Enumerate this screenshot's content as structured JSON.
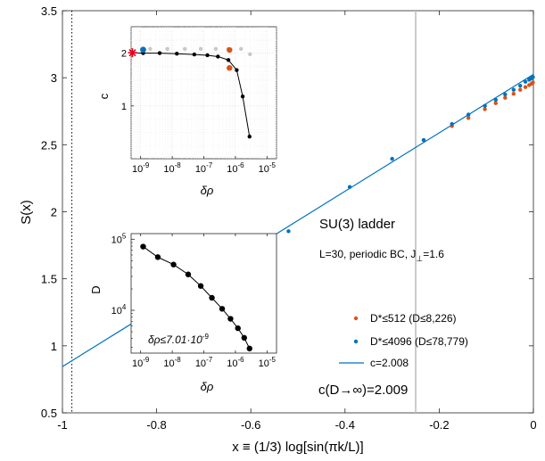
{
  "chart_data": [
    {
      "type": "scatter",
      "xlabel": "x ≡ (1/3) log[sin(πk/L)]",
      "ylabel": "S(x)",
      "xlim": [
        -1,
        0
      ],
      "ylim": [
        0.5,
        3.5
      ],
      "xticks": [
        "-1",
        "-0.8",
        "-0.6",
        "-0.4",
        "-0.2",
        "0"
      ],
      "yticks": [
        "0.5",
        "1",
        "1.5",
        "2",
        "2.5",
        "3",
        "3.5"
      ],
      "grid": false,
      "legend_position": "bottom-right",
      "annotations": {
        "model": "SU(3) ladder",
        "params_main": "L=30, periodic BC, J",
        "params_sub": "⊥",
        "params_tail": "=1.6",
        "extrapolated": "c(D→∞)=2.009"
      },
      "reference_lines": {
        "dotted_x": -0.98,
        "gray_x": -0.25
      },
      "series": [
        {
          "name": "D*≤512 (D≤8,226)",
          "color": "#d95319",
          "kind": "points",
          "x": [
            -0.233,
            -0.173,
            -0.138,
            -0.103,
            -0.08,
            -0.06,
            -0.042,
            -0.028,
            -0.017,
            -0.009,
            -0.004,
            -0.001
          ],
          "y": [
            2.535,
            2.64,
            2.7,
            2.765,
            2.81,
            2.85,
            2.88,
            2.91,
            2.93,
            2.945,
            2.955,
            2.965
          ]
        },
        {
          "name": "D*≤4096 (D≤78,779)",
          "color": "#0072bd",
          "kind": "points",
          "x": [
            -0.52,
            -0.39,
            -0.3,
            -0.233,
            -0.173,
            -0.138,
            -0.103,
            -0.08,
            -0.06,
            -0.042,
            -0.028,
            -0.017,
            -0.009,
            -0.004,
            -0.001
          ],
          "y": [
            1.855,
            2.185,
            2.395,
            2.535,
            2.655,
            2.725,
            2.79,
            2.835,
            2.875,
            2.91,
            2.94,
            2.97,
            2.985,
            2.995,
            3.005
          ]
        },
        {
          "name": "c=2.008",
          "color": "#0072bd",
          "kind": "line",
          "x": [
            -1,
            0
          ],
          "y": [
            0.845,
            3.025
          ]
        }
      ]
    },
    {
      "type": "scatter",
      "xlabel": "δρ",
      "ylabel": "c",
      "xscale": "log",
      "xlim": [
        5e-10,
        2e-05
      ],
      "ylim": [
        0,
        2.5
      ],
      "xtick_base": "10",
      "xtick_exps": [
        "-9",
        "-8",
        "-7",
        "-6",
        "-5"
      ],
      "yticks": [
        "1",
        "2"
      ],
      "grid": true,
      "series": [
        {
          "name": "black",
          "color": "#000000",
          "kind": "line+points",
          "x": [
            1.2e-09,
            4e-09,
            1.4e-08,
            5e-08,
            1.3e-07,
            2.8e-07,
            6e-07,
            1.1e-06,
            1.7e-06,
            2.8e-06
          ],
          "y": [
            2.0,
            2.0,
            1.99,
            1.975,
            1.96,
            1.935,
            1.87,
            1.68,
            1.18,
            0.42
          ]
        },
        {
          "name": "gray",
          "color": "#c8c8c8",
          "kind": "points",
          "x": [
            2e-09,
            7e-09,
            2.5e-08,
            8e-08,
            2.4e-07,
            6e-07,
            1.5e-06,
            2.9e-06
          ],
          "y": [
            2.08,
            2.08,
            2.08,
            2.08,
            2.08,
            2.08,
            2.08,
            1.98
          ]
        },
        {
          "name": "blue",
          "color": "#0072bd",
          "kind": "points",
          "x": [
            1.2e-09
          ],
          "y": [
            2.065
          ]
        },
        {
          "name": "orange",
          "color": "#d95319",
          "kind": "points",
          "x": [
            6.5e-07,
            6.5e-07
          ],
          "y": [
            2.06,
            1.72
          ]
        },
        {
          "name": "star",
          "color": "#e4001b",
          "kind": "star",
          "x": [
            5.5e-10
          ],
          "y": [
            2.008
          ]
        }
      ]
    },
    {
      "type": "line",
      "xlabel": "δρ",
      "ylabel": "D",
      "xscale": "log",
      "yscale": "log",
      "xlim": [
        5e-10,
        2e-05
      ],
      "ylim": [
        2500,
        120000
      ],
      "xtick_base": "10",
      "xtick_exps": [
        "-9",
        "-8",
        "-7",
        "-6",
        "-5"
      ],
      "ytick_base": "10",
      "ytick_exps": [
        "4",
        "5"
      ],
      "grid": false,
      "annotation": "δρ≤7.01·10",
      "annotation_exp": "-9",
      "series": [
        {
          "name": "D",
          "color": "#000000",
          "kind": "line+points",
          "x": [
            1.2e-09,
            3.5e-09,
            1.1e-08,
            3.2e-08,
            8e-08,
            1.8e-07,
            3.8e-07,
            7e-07,
            1.2e-06,
            1.9e-06,
            2.8e-06
          ],
          "y": [
            78779,
            56000,
            44000,
            32000,
            22000,
            15000,
            10500,
            7600,
            5600,
            4100,
            2900
          ]
        }
      ]
    }
  ]
}
